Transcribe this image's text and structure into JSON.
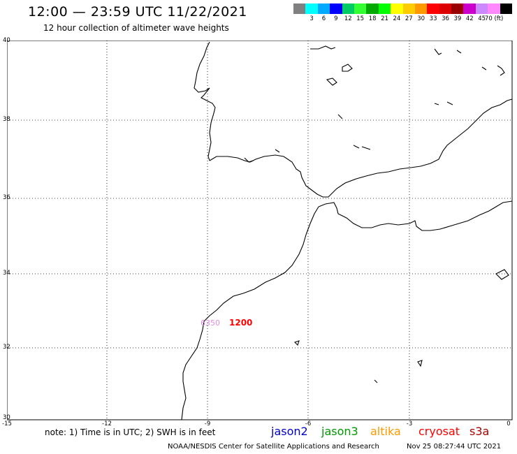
{
  "header": {
    "title": "12:00 — 23:59 UTC 11/22/2021",
    "subtitle": "12 hour collection of altimeter wave heights"
  },
  "colorbar": {
    "colors": [
      "#808080",
      "#00ffff",
      "#00aaff",
      "#0000ff",
      "#00cc66",
      "#33ff33",
      "#00aa00",
      "#00ff00",
      "#ffff00",
      "#ffcc00",
      "#ff9900",
      "#ff0000",
      "#dd0000",
      "#990000",
      "#cc00cc",
      "#cc88ff",
      "#ff88ff",
      "#000000"
    ],
    "labels": [
      "3",
      "6",
      "9",
      "12",
      "15",
      "18",
      "21",
      "24",
      "27",
      "30",
      "33",
      "36",
      "39",
      "42",
      "45",
      "70 (ft)"
    ]
  },
  "map": {
    "y_labels": [
      "40",
      "38",
      "36",
      "34",
      "32",
      "30"
    ],
    "x_labels": [
      "-15",
      "-12",
      "-9",
      "-6",
      "-3",
      "0"
    ],
    "passes": [
      {
        "label": "6350",
        "color": "#e28ee2"
      },
      {
        "label": "1200",
        "color": "#ff0000"
      }
    ]
  },
  "note": "note:  1) Time is in UTC;  2) SWH is in feet",
  "satellites": [
    {
      "name": "jason2",
      "color": "#0000cc"
    },
    {
      "name": "jason3",
      "color": "#009900"
    },
    {
      "name": "altika",
      "color": "#ff9900"
    },
    {
      "name": "cryosat",
      "color": "#ff0000"
    },
    {
      "name": "s3a",
      "color": "#aa0000"
    }
  ],
  "footer": {
    "credit": "NOAA/NESDIS Center for Satellite Applications and Research",
    "timestamp": "Nov 25 08:27:44 UTC 2021"
  }
}
